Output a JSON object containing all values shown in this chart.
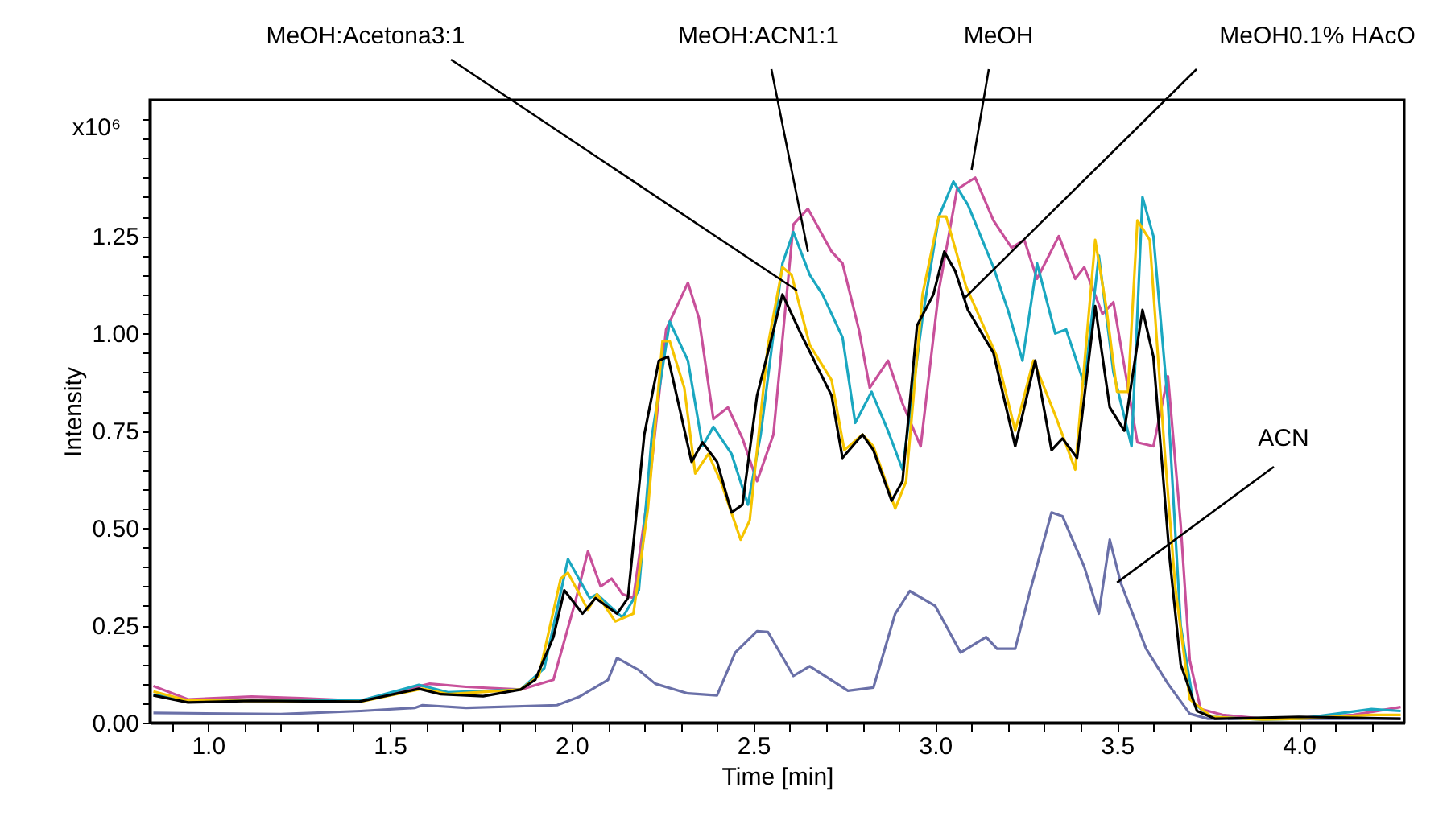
{
  "chart_data": {
    "type": "line",
    "xlabel": "Time [min]",
    "ylabel": "Intensity",
    "xlim": [
      0.84,
      4.29
    ],
    "ylim": [
      0,
      1.6
    ],
    "xticks": [
      {
        "value": 0.9,
        "label": null
      },
      {
        "value": 1.0,
        "label": "1.0"
      },
      {
        "value": 1.1,
        "label": null
      },
      {
        "value": 1.2,
        "label": null
      },
      {
        "value": 1.3,
        "label": null
      },
      {
        "value": 1.4,
        "label": null
      },
      {
        "value": 1.5,
        "label": "1.5"
      },
      {
        "value": 1.6,
        "label": null
      },
      {
        "value": 1.7,
        "label": null
      },
      {
        "value": 1.8,
        "label": null
      },
      {
        "value": 1.9,
        "label": null
      },
      {
        "value": 2.0,
        "label": "2.0"
      },
      {
        "value": 2.1,
        "label": null
      },
      {
        "value": 2.2,
        "label": null
      },
      {
        "value": 2.3,
        "label": null
      },
      {
        "value": 2.4,
        "label": null
      },
      {
        "value": 2.5,
        "label": "2.5"
      },
      {
        "value": 2.6,
        "label": null
      },
      {
        "value": 2.7,
        "label": null
      },
      {
        "value": 2.8,
        "label": null
      },
      {
        "value": 2.9,
        "label": null
      },
      {
        "value": 3.0,
        "label": "3.0"
      },
      {
        "value": 3.1,
        "label": null
      },
      {
        "value": 3.2,
        "label": null
      },
      {
        "value": 3.3,
        "label": null
      },
      {
        "value": 3.4,
        "label": null
      },
      {
        "value": 3.5,
        "label": "3.5"
      },
      {
        "value": 3.6,
        "label": null
      },
      {
        "value": 3.7,
        "label": null
      },
      {
        "value": 3.8,
        "label": null
      },
      {
        "value": 3.9,
        "label": null
      },
      {
        "value": 4.0,
        "label": "4.0"
      },
      {
        "value": 4.1,
        "label": null
      },
      {
        "value": 4.2,
        "label": null
      }
    ],
    "yticks": [
      {
        "value": 0,
        "label": "0.00"
      },
      {
        "value": 0.05,
        "label": null
      },
      {
        "value": 0.1,
        "label": null
      },
      {
        "value": 0.15,
        "label": null
      },
      {
        "value": 0.2,
        "label": null
      },
      {
        "value": 0.25,
        "label": "0.25"
      },
      {
        "value": 0.3,
        "label": null
      },
      {
        "value": 0.35,
        "label": null
      },
      {
        "value": 0.4,
        "label": null
      },
      {
        "value": 0.45,
        "label": null
      },
      {
        "value": 0.5,
        "label": "0.50"
      },
      {
        "value": 0.55,
        "label": null
      },
      {
        "value": 0.6,
        "label": null
      },
      {
        "value": 0.65,
        "label": null
      },
      {
        "value": 0.7,
        "label": null
      },
      {
        "value": 0.75,
        "label": "0.75"
      },
      {
        "value": 0.8,
        "label": null
      },
      {
        "value": 0.85,
        "label": null
      },
      {
        "value": 0.9,
        "label": null
      },
      {
        "value": 0.95,
        "label": null
      },
      {
        "value": 1.0,
        "label": "1.00"
      },
      {
        "value": 1.05,
        "label": null
      },
      {
        "value": 1.1,
        "label": null
      },
      {
        "value": 1.15,
        "label": null
      },
      {
        "value": 1.2,
        "label": null
      },
      {
        "value": 1.25,
        "label": "1.25"
      },
      {
        "value": 1.3,
        "label": null
      },
      {
        "value": 1.35,
        "label": null
      },
      {
        "value": 1.4,
        "label": null
      },
      {
        "value": 1.45,
        "label": null
      },
      {
        "value": 1.5,
        "label": null
      },
      {
        "value": 1.55,
        "label": null
      }
    ],
    "grid": false,
    "legend": false,
    "line_style": "solid",
    "marker": "none",
    "series": [
      {
        "color": "#6a70a8",
        "x": [
          0.85,
          1.2,
          1.42,
          1.57,
          1.59,
          1.71,
          1.96,
          2.02,
          2.1,
          2.125,
          2.185,
          2.23,
          2.32,
          2.4,
          2.45,
          2.51,
          2.54,
          2.61,
          2.655,
          2.76,
          2.83,
          2.89,
          2.93,
          3.0,
          3.07,
          3.14,
          3.17,
          3.22,
          3.26,
          3.32,
          3.35,
          3.41,
          3.45,
          3.48,
          3.51,
          3.58,
          3.64,
          3.7,
          3.75,
          4.0,
          4.28
        ],
        "values": [
          0.025,
          0.022,
          0.03,
          0.038,
          0.045,
          0.038,
          0.045,
          0.066,
          0.11,
          0.166,
          0.135,
          0.1,
          0.075,
          0.07,
          0.18,
          0.235,
          0.233,
          0.12,
          0.145,
          0.082,
          0.09,
          0.28,
          0.338,
          0.3,
          0.18,
          0.22,
          0.19,
          0.19,
          0.335,
          0.54,
          0.53,
          0.4,
          0.28,
          0.47,
          0.36,
          0.19,
          0.1,
          0.023,
          0.01,
          0.01,
          0.01
        ]
      },
      {
        "color": "#c8509a",
        "x": [
          0.85,
          0.945,
          1.12,
          1.255,
          1.42,
          1.61,
          1.71,
          1.86,
          1.95,
          2.01,
          2.045,
          2.08,
          2.11,
          2.14,
          2.17,
          2.215,
          2.26,
          2.32,
          2.35,
          2.39,
          2.43,
          2.47,
          2.51,
          2.555,
          2.61,
          2.65,
          2.715,
          2.745,
          2.79,
          2.82,
          2.87,
          2.91,
          2.96,
          3.01,
          3.06,
          3.11,
          3.16,
          3.21,
          3.245,
          3.28,
          3.34,
          3.385,
          3.41,
          3.46,
          3.49,
          3.556,
          3.6,
          3.64,
          3.675,
          3.7,
          3.73,
          3.79,
          3.9,
          4.0,
          4.15,
          4.28
        ],
        "values": [
          0.094,
          0.06,
          0.067,
          0.063,
          0.056,
          0.1,
          0.092,
          0.085,
          0.11,
          0.31,
          0.44,
          0.35,
          0.37,
          0.33,
          0.32,
          0.62,
          1.01,
          1.13,
          1.04,
          0.78,
          0.81,
          0.73,
          0.62,
          0.74,
          1.28,
          1.32,
          1.21,
          1.18,
          1.01,
          0.86,
          0.93,
          0.82,
          0.71,
          1.11,
          1.37,
          1.4,
          1.29,
          1.22,
          1.24,
          1.14,
          1.25,
          1.14,
          1.17,
          1.05,
          1.08,
          0.72,
          0.71,
          0.89,
          0.51,
          0.16,
          0.035,
          0.02,
          0.01,
          0.012,
          0.02,
          0.04
        ]
      },
      {
        "color": "#1aa7c0",
        "x": [
          0.85,
          0.945,
          1.42,
          1.58,
          1.66,
          1.86,
          1.925,
          1.99,
          2.05,
          2.07,
          2.14,
          2.185,
          2.22,
          2.27,
          2.32,
          2.36,
          2.39,
          2.44,
          2.485,
          2.52,
          2.58,
          2.61,
          2.655,
          2.69,
          2.745,
          2.78,
          2.825,
          2.87,
          2.91,
          2.965,
          3.01,
          3.05,
          3.09,
          3.16,
          3.2,
          3.24,
          3.28,
          3.33,
          3.36,
          3.41,
          3.45,
          3.49,
          3.54,
          3.57,
          3.6,
          3.64,
          3.675,
          3.71,
          3.76,
          3.9,
          4.0,
          4.2,
          4.28
        ],
        "values": [
          0.072,
          0.057,
          0.057,
          0.097,
          0.078,
          0.085,
          0.14,
          0.42,
          0.32,
          0.33,
          0.27,
          0.34,
          0.73,
          1.03,
          0.93,
          0.71,
          0.76,
          0.69,
          0.56,
          0.74,
          1.18,
          1.26,
          1.15,
          1.1,
          0.99,
          0.77,
          0.85,
          0.75,
          0.65,
          1.04,
          1.3,
          1.39,
          1.33,
          1.17,
          1.06,
          0.93,
          1.18,
          1.0,
          1.01,
          0.87,
          1.2,
          0.9,
          0.71,
          1.35,
          1.25,
          0.82,
          0.25,
          0.05,
          0.015,
          0.008,
          0.01,
          0.035,
          0.03
        ]
      },
      {
        "color": "#f5c400",
        "x": [
          0.85,
          0.945,
          1.42,
          1.59,
          1.66,
          1.86,
          1.91,
          1.97,
          1.99,
          2.045,
          2.07,
          2.12,
          2.17,
          2.21,
          2.25,
          2.27,
          2.31,
          2.34,
          2.376,
          2.41,
          2.465,
          2.49,
          2.54,
          2.58,
          2.605,
          2.655,
          2.715,
          2.75,
          2.8,
          2.83,
          2.89,
          2.92,
          2.965,
          3.01,
          3.03,
          3.085,
          3.17,
          3.22,
          3.27,
          3.33,
          3.385,
          3.44,
          3.47,
          3.5,
          3.53,
          3.556,
          3.59,
          3.63,
          3.66,
          3.7,
          3.76,
          3.9,
          4.0,
          4.2,
          4.28
        ],
        "values": [
          0.08,
          0.057,
          0.054,
          0.087,
          0.073,
          0.085,
          0.12,
          0.37,
          0.385,
          0.29,
          0.33,
          0.26,
          0.28,
          0.55,
          0.98,
          0.98,
          0.86,
          0.64,
          0.69,
          0.62,
          0.47,
          0.52,
          0.97,
          1.17,
          1.15,
          0.97,
          0.88,
          0.7,
          0.74,
          0.71,
          0.55,
          0.62,
          1.1,
          1.3,
          1.3,
          1.12,
          0.94,
          0.75,
          0.93,
          0.79,
          0.65,
          1.24,
          1.07,
          0.85,
          0.85,
          1.29,
          1.24,
          0.71,
          0.35,
          0.06,
          0.015,
          0.008,
          0.01,
          0.02,
          0.02
        ]
      },
      {
        "color": "#000000",
        "x": [
          0.85,
          0.945,
          1.12,
          1.416,
          1.58,
          1.64,
          1.757,
          1.86,
          1.9,
          1.95,
          1.98,
          2.03,
          2.066,
          2.125,
          2.155,
          2.2,
          2.24,
          2.265,
          2.33,
          2.36,
          2.4,
          2.44,
          2.47,
          2.51,
          2.58,
          2.63,
          2.715,
          2.745,
          2.8,
          2.83,
          2.88,
          2.91,
          2.95,
          2.995,
          3.025,
          3.055,
          3.09,
          3.16,
          3.22,
          3.275,
          3.32,
          3.35,
          3.39,
          3.44,
          3.48,
          3.52,
          3.57,
          3.6,
          3.645,
          3.675,
          3.72,
          3.77,
          4.0,
          4.28
        ],
        "values": [
          0.07,
          0.052,
          0.056,
          0.054,
          0.087,
          0.073,
          0.068,
          0.085,
          0.11,
          0.22,
          0.34,
          0.28,
          0.32,
          0.28,
          0.32,
          0.74,
          0.93,
          0.94,
          0.67,
          0.72,
          0.67,
          0.54,
          0.56,
          0.84,
          1.1,
          1.0,
          0.84,
          0.68,
          0.74,
          0.7,
          0.57,
          0.62,
          1.02,
          1.1,
          1.21,
          1.16,
          1.06,
          0.95,
          0.71,
          0.93,
          0.7,
          0.73,
          0.68,
          1.07,
          0.81,
          0.75,
          1.06,
          0.94,
          0.42,
          0.15,
          0.03,
          0.01,
          0.015,
          0.01
        ]
      }
    ],
    "annotations": [
      "x10⁶",
      {
        "text": "MeOH:Acetona3:1",
        "x": 2.62,
        "y": 1.11
      },
      {
        "text": "MeOH:ACN1:1",
        "x": 2.65,
        "y": 1.21
      },
      {
        "text": "MeOH",
        "x": 3.1,
        "y": 1.42
      },
      {
        "text": "MeOH0.1% HAcO",
        "x": 3.08,
        "y": 1.09
      },
      {
        "text": "ACN",
        "x": 3.5,
        "y": 0.36
      }
    ]
  }
}
